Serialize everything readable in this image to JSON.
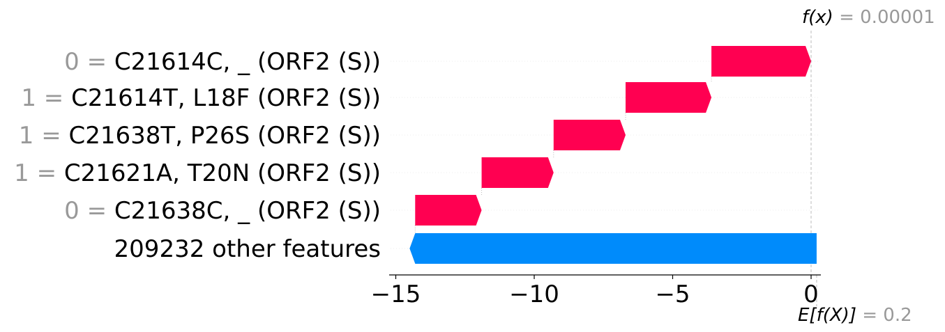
{
  "chart_data": {
    "type": "waterfall",
    "features": [
      {
        "value_label": "0",
        "name": "C21614C, _ (ORF2 (S))",
        "start": -3.6,
        "end": 0.0,
        "direction": "positive"
      },
      {
        "value_label": "1",
        "name": "C21614T, L18F (ORF2 (S))",
        "start": -6.7,
        "end": -3.6,
        "direction": "positive"
      },
      {
        "value_label": "1",
        "name": "C21638T, P26S (ORF2 (S))",
        "start": -9.3,
        "end": -6.7,
        "direction": "positive"
      },
      {
        "value_label": "1",
        "name": "C21621A, T20N (ORF2 (S))",
        "start": -11.9,
        "end": -9.3,
        "direction": "positive"
      },
      {
        "value_label": "0",
        "name": "C21638C, _ (ORF2 (S))",
        "start": -14.3,
        "end": -11.9,
        "direction": "positive"
      }
    ],
    "other_features": {
      "label": "209232 other features",
      "start": 0.2,
      "end": -14.5,
      "direction": "negative"
    },
    "x_ticks": [
      {
        "value": -15,
        "label": "−15"
      },
      {
        "value": -10,
        "label": "−10"
      },
      {
        "value": -5,
        "label": "−5"
      },
      {
        "value": 0,
        "label": "0"
      }
    ],
    "xlim": [
      -15.2,
      0.3
    ],
    "fx": {
      "label": "f(x)",
      "value_text": "0.00001",
      "value": 1e-05
    },
    "base": {
      "label": "E[f(X)]",
      "value_text": "0.2",
      "value": 0.2
    },
    "colors": {
      "positive": "#ff0051",
      "negative": "#008bfb",
      "gray_text": "#999999",
      "axis": "#000000",
      "gridline": "#eeeeee",
      "dashed": "#bbbbbb"
    },
    "separator": " = "
  }
}
